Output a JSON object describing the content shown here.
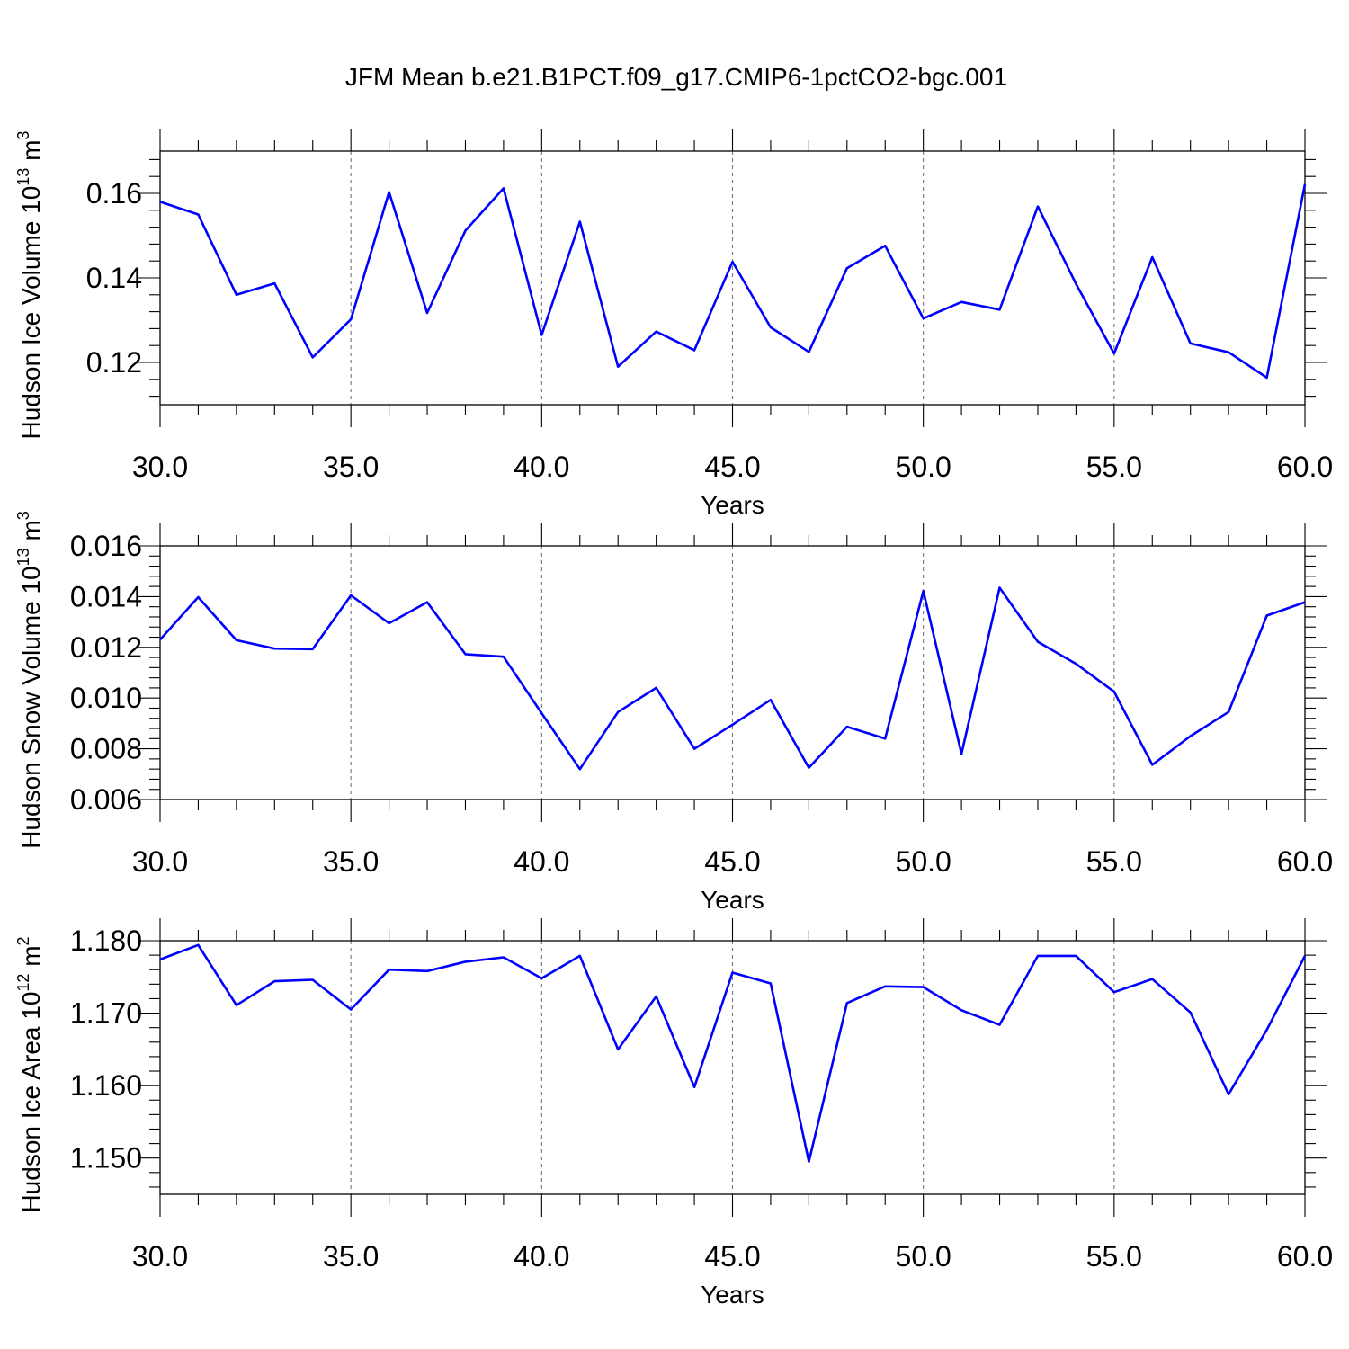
{
  "title": "JFM Mean b.e21.B1PCT.f09_g17.CMIP6-1pctCO2-bgc.001",
  "colors": {
    "series": "#0000ff",
    "grid": "#777777"
  },
  "chart_data": [
    {
      "type": "line",
      "ylabel": "Hudson Ice Volume 10",
      "ylabel_exp": "13",
      "ylabel_unit": "m",
      "ylabel_unit_exp": "3",
      "xlabel": "Years",
      "xlim": [
        30,
        60
      ],
      "ylim": [
        0.11,
        0.17
      ],
      "xticks": [
        30,
        35,
        40,
        45,
        50,
        55,
        60
      ],
      "xtick_labels": [
        "30.0",
        "35.0",
        "40.0",
        "45.0",
        "50.0",
        "55.0",
        "60.0"
      ],
      "yticks": [
        0.12,
        0.14,
        0.16
      ],
      "ytick_labels": [
        "0.12",
        "0.14",
        "0.16"
      ],
      "grid": "dashed vertical at major x ticks",
      "x": [
        30,
        31,
        32,
        33,
        34,
        35,
        36,
        37,
        38,
        39,
        40,
        41,
        42,
        43,
        44,
        45,
        46,
        47,
        48,
        49,
        50,
        51,
        52,
        53,
        54,
        55,
        56,
        57,
        58,
        59,
        60
      ],
      "values": [
        0.158,
        0.155,
        0.136,
        0.1387,
        0.1212,
        0.1302,
        0.1603,
        0.1317,
        0.1512,
        0.1612,
        0.1265,
        0.1533,
        0.119,
        0.1273,
        0.1229,
        0.1438,
        0.1283,
        0.1225,
        0.1423,
        0.1476,
        0.1304,
        0.1343,
        0.1325,
        0.1569,
        0.1386,
        0.1221,
        0.1449,
        0.1245,
        0.1224,
        0.1164,
        0.1622
      ]
    },
    {
      "type": "line",
      "ylabel": "Hudson Snow Volume 10",
      "ylabel_exp": "13",
      "ylabel_unit": "m",
      "ylabel_unit_exp": "3",
      "xlabel": "Years",
      "xlim": [
        30,
        60
      ],
      "ylim": [
        0.006,
        0.016
      ],
      "xticks": [
        30,
        35,
        40,
        45,
        50,
        55,
        60
      ],
      "xtick_labels": [
        "30.0",
        "35.0",
        "40.0",
        "45.0",
        "50.0",
        "55.0",
        "60.0"
      ],
      "yticks": [
        0.006,
        0.008,
        0.01,
        0.012,
        0.014,
        0.016
      ],
      "ytick_labels": [
        "0.006",
        "0.008",
        "0.010",
        "0.012",
        "0.014",
        "0.016"
      ],
      "grid": "dashed vertical at major x ticks",
      "x": [
        30,
        31,
        32,
        33,
        34,
        35,
        36,
        37,
        38,
        39,
        40,
        41,
        42,
        43,
        44,
        45,
        46,
        47,
        48,
        49,
        50,
        51,
        52,
        53,
        54,
        55,
        56,
        57,
        58,
        59,
        60
      ],
      "values": [
        0.0123,
        0.01398,
        0.01228,
        0.01195,
        0.01193,
        0.01405,
        0.01295,
        0.01378,
        0.01173,
        0.01163,
        0.0094,
        0.0072,
        0.00945,
        0.0104,
        0.008,
        0.00895,
        0.00993,
        0.00725,
        0.00887,
        0.0084,
        0.01422,
        0.0078,
        0.01435,
        0.01222,
        0.01135,
        0.01025,
        0.00737,
        0.0085,
        0.00945,
        0.01325,
        0.01378
      ]
    },
    {
      "type": "line",
      "ylabel": "Hudson Ice Area 10",
      "ylabel_exp": "12",
      "ylabel_unit": "m",
      "ylabel_unit_exp": "2",
      "xlabel": "Years",
      "xlim": [
        30,
        60
      ],
      "ylim": [
        1.145,
        1.18
      ],
      "xticks": [
        30,
        35,
        40,
        45,
        50,
        55,
        60
      ],
      "xtick_labels": [
        "30.0",
        "35.0",
        "40.0",
        "45.0",
        "50.0",
        "55.0",
        "60.0"
      ],
      "yticks": [
        1.15,
        1.16,
        1.17,
        1.18
      ],
      "ytick_labels": [
        "1.150",
        "1.160",
        "1.170",
        "1.180"
      ],
      "grid": "dashed vertical at major x ticks",
      "x": [
        30,
        31,
        32,
        33,
        34,
        35,
        36,
        37,
        38,
        39,
        40,
        41,
        42,
        43,
        44,
        45,
        46,
        47,
        48,
        49,
        50,
        51,
        52,
        53,
        54,
        55,
        56,
        57,
        58,
        59,
        60
      ],
      "values": [
        1.1774,
        1.1794,
        1.1711,
        1.1744,
        1.1746,
        1.1705,
        1.176,
        1.1758,
        1.1771,
        1.1777,
        1.1748,
        1.1779,
        1.165,
        1.1723,
        1.1598,
        1.1756,
        1.1741,
        1.1495,
        1.1714,
        1.1737,
        1.1736,
        1.1704,
        1.1684,
        1.1779,
        1.1779,
        1.1729,
        1.1747,
        1.1701,
        1.1588,
        1.1677,
        1.1779
      ]
    }
  ]
}
